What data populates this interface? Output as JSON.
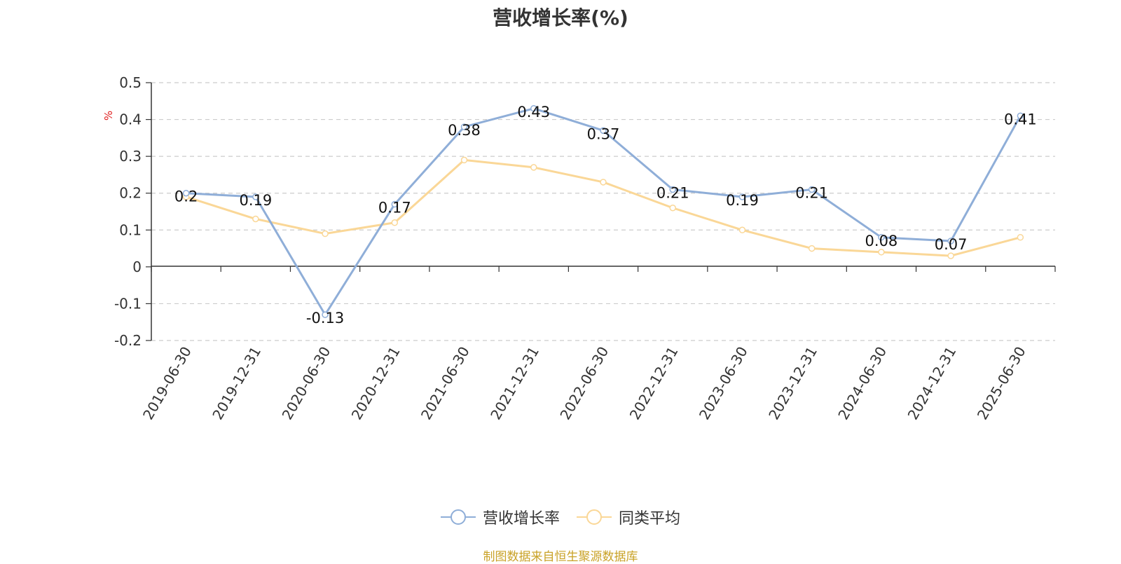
{
  "chart_data": {
    "type": "line",
    "title": "营收增长率(%)",
    "ylabel": "%",
    "xlabel": "",
    "ylim": [
      -0.2,
      0.5
    ],
    "yticks": [
      -0.2,
      -0.1,
      0,
      0.1,
      0.2,
      0.3,
      0.4,
      0.5
    ],
    "ytick_labels": [
      "-0.2",
      "-0.1",
      "0",
      "0.1",
      "0.2",
      "0.3",
      "0.4",
      "0.5"
    ],
    "grid": true,
    "legend_position": "bottom-center",
    "categories": [
      "2019-06-30",
      "2019-12-31",
      "2020-06-30",
      "2020-12-31",
      "2021-06-30",
      "2021-12-31",
      "2022-06-30",
      "2022-12-31",
      "2023-06-30",
      "2023-12-31",
      "2024-06-30",
      "2024-12-31",
      "2025-06-30"
    ],
    "series": [
      {
        "name": "营收增长率",
        "color": "#8faed8",
        "values": [
          0.2,
          0.19,
          -0.13,
          0.17,
          0.38,
          0.43,
          0.37,
          0.21,
          0.19,
          0.21,
          0.08,
          0.07,
          0.41
        ],
        "data_labels": [
          "0.2",
          "0.19",
          "-0.13",
          "0.17",
          "0.38",
          "0.43",
          "0.37",
          "0.21",
          "0.19",
          "0.21",
          "0.08",
          "0.07",
          "0.41"
        ]
      },
      {
        "name": "同类平均",
        "color": "#fad797",
        "values": [
          0.19,
          0.13,
          0.09,
          0.12,
          0.29,
          0.27,
          0.23,
          0.16,
          0.1,
          0.05,
          0.04,
          0.03,
          0.08
        ]
      }
    ]
  },
  "legend": {
    "items": [
      {
        "label": "营收增长率",
        "color": "#8faed8"
      },
      {
        "label": "同类平均",
        "color": "#fad797"
      }
    ]
  },
  "source_note": "制图数据来自恒生聚源数据库"
}
